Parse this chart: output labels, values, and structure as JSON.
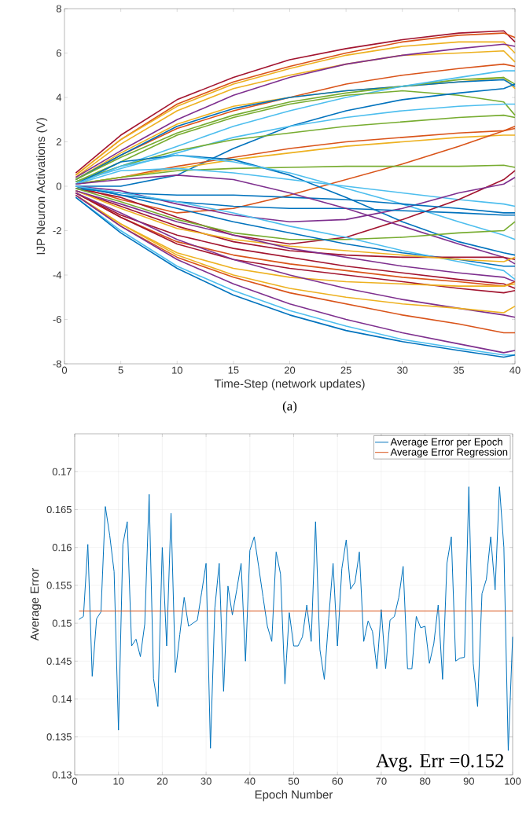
{
  "chart_data": [
    {
      "type": "line",
      "xlabel": "Time-Step (network updates)",
      "ylabel": "IJP Neuron Activations (V)",
      "annotations": [
        "(a)"
      ],
      "x": [
        1,
        5,
        10,
        15,
        20,
        25,
        30,
        35,
        39,
        40
      ],
      "xlim": [
        0,
        40
      ],
      "xticks": [
        0,
        5,
        10,
        15,
        20,
        25,
        30,
        35,
        40
      ],
      "ylim": [
        -8,
        8
      ],
      "yticks": [
        -8,
        -6,
        -4,
        -2,
        0,
        2,
        4,
        6,
        8
      ],
      "grid": false,
      "legend": false,
      "series": [
        {
          "color": "#a2142f",
          "values": [
            0.6,
            2.3,
            3.9,
            4.9,
            5.7,
            6.2,
            6.6,
            6.9,
            7.0,
            6.5
          ]
        },
        {
          "color": "#d95319",
          "values": [
            0.5,
            2.1,
            3.7,
            4.7,
            5.4,
            6.0,
            6.5,
            6.8,
            6.9,
            6.7
          ]
        },
        {
          "color": "#edb120",
          "values": [
            0.5,
            2.1,
            3.6,
            4.6,
            5.3,
            5.9,
            6.3,
            6.5,
            6.5,
            6.0
          ]
        },
        {
          "color": "#edb120",
          "values": [
            0.4,
            1.9,
            3.4,
            4.4,
            5.0,
            5.5,
            5.9,
            6.0,
            6.1,
            5.6
          ]
        },
        {
          "color": "#7e2f8e",
          "values": [
            0.4,
            1.6,
            3.0,
            4.1,
            4.9,
            5.5,
            5.9,
            6.2,
            6.4,
            6.3
          ]
        },
        {
          "color": "#d95319",
          "values": [
            0.3,
            1.4,
            2.6,
            3.4,
            4.0,
            4.6,
            5.0,
            5.3,
            5.5,
            5.4
          ]
        },
        {
          "color": "#edb120",
          "values": [
            0.3,
            1.5,
            2.8,
            3.6,
            4.0,
            4.3,
            4.5,
            4.7,
            4.9,
            4.4
          ]
        },
        {
          "color": "#0072bd",
          "values": [
            0.3,
            1.4,
            2.7,
            3.5,
            4.0,
            4.3,
            4.5,
            4.7,
            4.8,
            4.5
          ]
        },
        {
          "color": "#77ac30",
          "values": [
            0.3,
            1.3,
            2.4,
            3.2,
            3.8,
            4.2,
            4.5,
            4.8,
            4.9,
            4.6
          ]
        },
        {
          "color": "#4dbeee",
          "values": [
            0.2,
            0.9,
            1.8,
            2.7,
            3.4,
            4.0,
            4.5,
            4.9,
            5.2,
            5.2
          ]
        },
        {
          "color": "#77ac30",
          "values": [
            0.2,
            1.1,
            2.3,
            3.1,
            3.7,
            4.1,
            4.3,
            4.1,
            3.8,
            3.2
          ]
        },
        {
          "color": "#0072bd",
          "values": [
            0.0,
            0.0,
            0.5,
            1.7,
            2.7,
            3.4,
            3.9,
            4.2,
            4.4,
            4.6
          ]
        },
        {
          "color": "#4dbeee",
          "values": [
            0.2,
            0.8,
            1.5,
            2.2,
            2.7,
            3.1,
            3.4,
            3.6,
            3.7,
            3.7
          ]
        },
        {
          "color": "#77ac30",
          "values": [
            0.2,
            0.9,
            1.6,
            2.1,
            2.4,
            2.7,
            2.9,
            3.1,
            3.2,
            3.1
          ]
        },
        {
          "color": "#d95319",
          "values": [
            0.1,
            0.4,
            0.9,
            1.3,
            1.7,
            2.0,
            2.2,
            2.4,
            2.5,
            2.6
          ]
        },
        {
          "color": "#edb120",
          "values": [
            0.1,
            0.4,
            0.8,
            1.2,
            1.5,
            1.8,
            2.0,
            2.2,
            2.3,
            2.3
          ]
        },
        {
          "color": "#d95319",
          "values": [
            0.0,
            -0.6,
            -1.2,
            -1.0,
            -0.4,
            0.3,
            1.0,
            1.8,
            2.5,
            2.7
          ]
        },
        {
          "color": "#77ac30",
          "values": [
            0.1,
            0.4,
            0.7,
            0.8,
            0.85,
            0.9,
            0.9,
            0.9,
            0.95,
            0.85
          ]
        },
        {
          "color": "#0072bd",
          "values": [
            0.1,
            1.1,
            1.4,
            1.2,
            0.5,
            -0.5,
            -1.6,
            -2.5,
            -3.0,
            -3.1
          ]
        },
        {
          "color": "#4dbeee",
          "values": [
            0.1,
            0.9,
            1.4,
            1.1,
            0.6,
            -0.1,
            -0.8,
            -1.6,
            -2.2,
            -2.4
          ]
        },
        {
          "color": "#4dbeee",
          "values": [
            0.1,
            0.7,
            0.8,
            0.6,
            0.3,
            0.0,
            -0.3,
            -0.6,
            -0.8,
            -0.9
          ]
        },
        {
          "color": "#a2142f",
          "values": [
            -0.1,
            -0.5,
            -1.4,
            -2.2,
            -2.6,
            -2.3,
            -1.5,
            -0.6,
            0.3,
            0.7
          ]
        },
        {
          "color": "#7e2f8e",
          "values": [
            0.0,
            -0.2,
            -0.8,
            -1.3,
            -1.6,
            -1.5,
            -1.0,
            -0.3,
            0.1,
            0.4
          ]
        },
        {
          "color": "#0072bd",
          "values": [
            -0.1,
            -0.3,
            -0.4,
            -0.4,
            -0.5,
            -0.6,
            -0.8,
            -1.0,
            -1.2,
            -1.2
          ]
        },
        {
          "color": "#0072bd",
          "values": [
            0.0,
            -0.4,
            -0.7,
            -0.9,
            -1.0,
            -1.0,
            -1.1,
            -1.2,
            -1.3,
            -1.3
          ]
        },
        {
          "color": "#7e2f8e",
          "values": [
            0.1,
            0.3,
            0.5,
            0.3,
            -0.3,
            -1.0,
            -1.8,
            -2.6,
            -3.2,
            -3.5
          ]
        },
        {
          "color": "#77ac30",
          "values": [
            -0.1,
            -0.7,
            -1.5,
            -2.1,
            -2.4,
            -2.4,
            -2.3,
            -2.1,
            -2.0,
            -1.6
          ]
        },
        {
          "color": "#0072bd",
          "values": [
            0.0,
            -0.4,
            -1.0,
            -1.6,
            -2.1,
            -2.6,
            -3.0,
            -3.3,
            -3.6,
            -3.6
          ]
        },
        {
          "color": "#4dbeee",
          "values": [
            0.0,
            -0.3,
            -0.7,
            -1.2,
            -1.8,
            -2.3,
            -2.9,
            -3.4,
            -3.8,
            -4.2
          ]
        },
        {
          "color": "#a2142f",
          "values": [
            -0.2,
            -0.9,
            -1.8,
            -2.5,
            -2.9,
            -3.1,
            -3.2,
            -3.2,
            -3.2,
            -3.3
          ]
        },
        {
          "color": "#edb120",
          "values": [
            -0.2,
            -1.0,
            -1.9,
            -2.4,
            -2.7,
            -2.9,
            -3.1,
            -3.3,
            -3.4,
            -3.2
          ]
        },
        {
          "color": "#7e2f8e",
          "values": [
            -0.2,
            -0.8,
            -1.6,
            -2.2,
            -2.8,
            -3.2,
            -3.6,
            -3.9,
            -4.1,
            -4.3
          ]
        },
        {
          "color": "#a2142f",
          "values": [
            -0.3,
            -1.3,
            -2.2,
            -2.8,
            -3.2,
            -3.6,
            -3.9,
            -4.2,
            -4.4,
            -4.6
          ]
        },
        {
          "color": "#d95319",
          "values": [
            -0.3,
            -1.4,
            -2.5,
            -3.1,
            -3.5,
            -3.8,
            -4.1,
            -4.3,
            -4.5,
            -4.3
          ]
        },
        {
          "color": "#a2142f",
          "values": [
            -0.3,
            -1.4,
            -2.6,
            -3.3,
            -3.7,
            -4.0,
            -4.3,
            -4.6,
            -4.8,
            -4.7
          ]
        },
        {
          "color": "#edb120",
          "values": [
            -0.4,
            -1.7,
            -3.0,
            -3.7,
            -4.1,
            -4.3,
            -4.4,
            -4.5,
            -4.5,
            -4.4
          ]
        },
        {
          "color": "#7e2f8e",
          "values": [
            -0.3,
            -1.2,
            -2.4,
            -3.3,
            -4.0,
            -4.6,
            -5.1,
            -5.5,
            -5.8,
            -5.9
          ]
        },
        {
          "color": "#edb120",
          "values": [
            -0.4,
            -1.7,
            -3.1,
            -4.0,
            -4.6,
            -5.0,
            -5.3,
            -5.5,
            -5.7,
            -5.4
          ]
        },
        {
          "color": "#d95319",
          "values": [
            -0.4,
            -1.8,
            -3.2,
            -4.1,
            -4.8,
            -5.3,
            -5.8,
            -6.2,
            -6.6,
            -6.6
          ]
        },
        {
          "color": "#7e2f8e",
          "values": [
            -0.4,
            -1.8,
            -3.3,
            -4.4,
            -5.3,
            -6.0,
            -6.6,
            -7.1,
            -7.5,
            -7.4
          ]
        },
        {
          "color": "#4dbeee",
          "values": [
            -0.5,
            -2.0,
            -3.6,
            -4.7,
            -5.6,
            -6.3,
            -6.9,
            -7.3,
            -7.6,
            -7.6
          ]
        },
        {
          "color": "#0072bd",
          "values": [
            -0.5,
            -2.1,
            -3.7,
            -4.9,
            -5.8,
            -6.5,
            -7.0,
            -7.4,
            -7.7,
            -7.6
          ]
        }
      ]
    },
    {
      "type": "line",
      "xlabel": "Epoch Number",
      "ylabel": "Average Error",
      "annotations": [
        "Avg. Err =0.152"
      ],
      "x": [
        1,
        2,
        3,
        4,
        5,
        6,
        7,
        8,
        9,
        10,
        11,
        12,
        13,
        14,
        15,
        16,
        17,
        18,
        19,
        20,
        21,
        22,
        23,
        24,
        25,
        26,
        27,
        28,
        29,
        30,
        31,
        32,
        33,
        34,
        35,
        36,
        37,
        38,
        39,
        40,
        41,
        42,
        43,
        44,
        45,
        46,
        47,
        48,
        49,
        50,
        51,
        52,
        53,
        54,
        55,
        56,
        57,
        58,
        59,
        60,
        61,
        62,
        63,
        64,
        65,
        66,
        67,
        68,
        69,
        70,
        71,
        72,
        73,
        74,
        75,
        76,
        77,
        78,
        79,
        80,
        81,
        82,
        83,
        84,
        85,
        86,
        87,
        88,
        89,
        90,
        91,
        92,
        93,
        94,
        95,
        96,
        97,
        98,
        99,
        100
      ],
      "xlim": [
        0,
        100
      ],
      "xticks": [
        0,
        10,
        20,
        30,
        40,
        50,
        60,
        70,
        80,
        90,
        100
      ],
      "ylim": [
        0.13,
        0.175
      ],
      "yticks": [
        0.13,
        0.135,
        0.14,
        0.145,
        0.15,
        0.155,
        0.16,
        0.165,
        0.17
      ],
      "grid": true,
      "legend": "top right",
      "series": [
        {
          "name": "Average Error per Epoch",
          "color": "#0072bd",
          "values": [
            0.1505,
            0.1509,
            0.1604,
            0.143,
            0.1506,
            0.1515,
            0.1654,
            0.1616,
            0.1568,
            0.1359,
            0.1604,
            0.1634,
            0.147,
            0.1479,
            0.1456,
            0.1499,
            0.167,
            0.1427,
            0.139,
            0.16,
            0.147,
            0.1645,
            0.1435,
            0.1485,
            0.1534,
            0.1496,
            0.15,
            0.1504,
            0.1541,
            0.1579,
            0.1335,
            0.152,
            0.1579,
            0.141,
            0.1549,
            0.1511,
            0.1544,
            0.1579,
            0.145,
            0.1596,
            0.1614,
            0.1575,
            0.1535,
            0.1496,
            0.1476,
            0.1594,
            0.1565,
            0.142,
            0.1514,
            0.147,
            0.147,
            0.1482,
            0.1524,
            0.1476,
            0.1634,
            0.1465,
            0.1426,
            0.1506,
            0.1579,
            0.147,
            0.1572,
            0.161,
            0.1545,
            0.1554,
            0.1594,
            0.1476,
            0.1503,
            0.1489,
            0.144,
            0.1518,
            0.144,
            0.1504,
            0.1509,
            0.1534,
            0.1575,
            0.144,
            0.144,
            0.1509,
            0.1494,
            0.1496,
            0.1447,
            0.1473,
            0.1524,
            0.1426,
            0.1579,
            0.1614,
            0.145,
            0.1454,
            0.1455,
            0.168,
            0.1447,
            0.139,
            0.1539,
            0.1558,
            0.1614,
            0.1544,
            0.168,
            0.16,
            0.1332,
            0.1482
          ]
        },
        {
          "name": "Average Error Regression",
          "color": "#d95319",
          "x": [
            1,
            100
          ],
          "values": [
            0.1516,
            0.1516
          ]
        }
      ]
    }
  ]
}
